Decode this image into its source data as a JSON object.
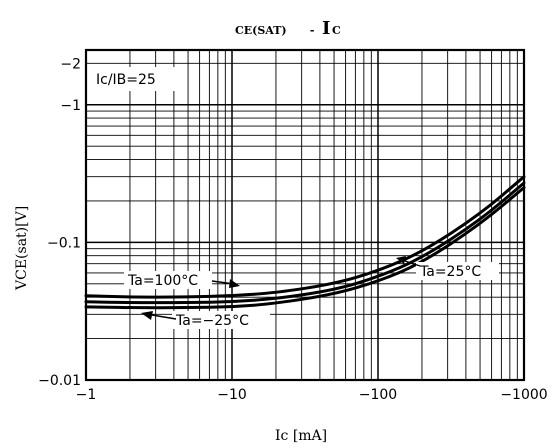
{
  "chart_data": {
    "type": "line",
    "title": {
      "prefix": "CE(SAT)",
      "separator": " - ",
      "main": "I",
      "sub": "C"
    },
    "xlabel": "Ic [mA]",
    "ylabel": "VCE(sat)[V]",
    "x_scale": "log",
    "y_scale": "log",
    "xlim": [
      -1,
      -1000
    ],
    "ylim": [
      -0.01,
      -2.5
    ],
    "x_ticks": [
      {
        "value": -1,
        "label": "−1"
      },
      {
        "value": -10,
        "label": "−10"
      },
      {
        "value": -100,
        "label": "−100"
      },
      {
        "value": -1000,
        "label": "−1000"
      }
    ],
    "y_ticks": [
      {
        "value": -0.01,
        "label": "−0.01"
      },
      {
        "value": -0.1,
        "label": "−0.1"
      },
      {
        "value": -1,
        "label": "−1"
      },
      {
        "value": -2,
        "label": "−2"
      }
    ],
    "grid": true,
    "condition_label": "Ic/IB=25",
    "series": [
      {
        "name": "Ta=100°C",
        "x": [
          -1,
          -2,
          -5,
          -10,
          -20,
          -50,
          -100,
          -200,
          -500,
          -1000
        ],
        "y": [
          -0.041,
          -0.04,
          -0.04,
          -0.041,
          -0.043,
          -0.05,
          -0.062,
          -0.085,
          -0.16,
          -0.3
        ]
      },
      {
        "name": "Ta=25°C",
        "x": [
          -1,
          -2,
          -5,
          -10,
          -20,
          -50,
          -100,
          -200,
          -500,
          -1000
        ],
        "y": [
          -0.037,
          -0.0365,
          -0.0365,
          -0.037,
          -0.039,
          -0.045,
          -0.056,
          -0.077,
          -0.145,
          -0.27
        ]
      },
      {
        "name": "Ta=−25°C",
        "x": [
          -1,
          -2,
          -5,
          -10,
          -20,
          -50,
          -100,
          -200,
          -500,
          -1000
        ],
        "y": [
          -0.034,
          -0.0335,
          -0.0335,
          -0.034,
          -0.036,
          -0.042,
          -0.052,
          -0.071,
          -0.135,
          -0.25
        ]
      }
    ],
    "annotations": [
      {
        "series": 0,
        "text": "Ta=100°C"
      },
      {
        "series": 1,
        "text": "Ta=25°C"
      },
      {
        "series": 2,
        "text": "Ta=−25°C"
      }
    ]
  }
}
